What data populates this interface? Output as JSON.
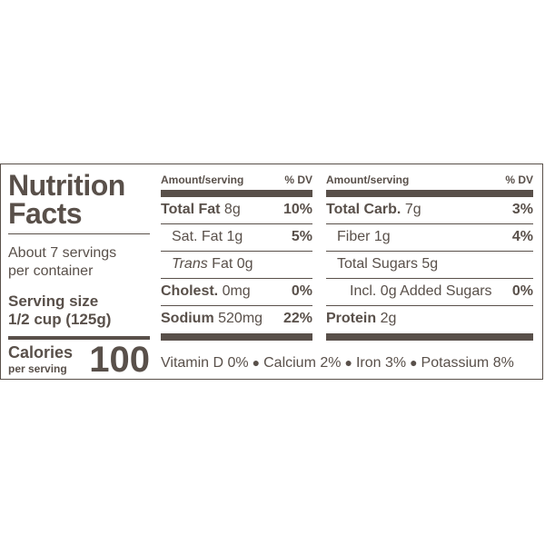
{
  "title_line1": "Nutrition",
  "title_line2": "Facts",
  "servings_line1": "About 7 servings",
  "servings_line2": "per container",
  "serving_size_label": "Serving size",
  "serving_size_value": "1/2 cup (125g)",
  "calories_label": "Calories",
  "calories_sub": "per serving",
  "calories_value": "100",
  "header": {
    "amount": "Amount/serving",
    "dv": "% DV"
  },
  "left_rows": [
    {
      "name": "Total Fat",
      "amount": " 8g",
      "dv": "10%"
    },
    {
      "name": "Sat. Fat",
      "amount": " 1g",
      "dv": "5%"
    },
    {
      "name": "Trans",
      "amount": " Fat 0g",
      "dv": ""
    },
    {
      "name": "Cholest.",
      "amount": " 0mg",
      "dv": "0%"
    },
    {
      "name": "Sodium",
      "amount": " 520mg",
      "dv": "22%"
    }
  ],
  "right_rows": [
    {
      "name": "Total Carb.",
      "amount": " 7g",
      "dv": "3%"
    },
    {
      "name": "Fiber",
      "amount": " 1g",
      "dv": "4%"
    },
    {
      "name": "Total Sugars",
      "amount": " 5g",
      "dv": ""
    },
    {
      "name": "Incl. 0g Added Sugars",
      "amount": "",
      "dv": "0%"
    },
    {
      "name": "Protein",
      "amount": " 2g",
      "dv": ""
    }
  ],
  "vitamins": [
    {
      "label": "Vitamin D 0%"
    },
    {
      "label": "Calcium 2%"
    },
    {
      "label": "Iron 3%"
    },
    {
      "label": "Potassium 8%"
    }
  ],
  "separator": "●",
  "colors": {
    "ink": "#59504a",
    "background": "#ffffff"
  }
}
